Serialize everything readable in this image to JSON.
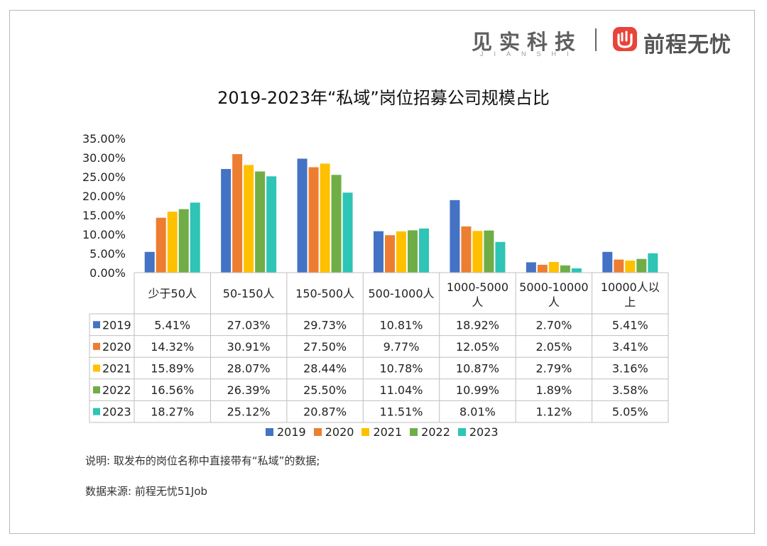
{
  "brand": {
    "left_logo_text": "见实科技",
    "left_logo_sub": "JIANSHI",
    "right_logo_text": "前程无忧"
  },
  "notes": {
    "line1": "说明: 取发布的岗位名称中直接带有“私域”的数据;",
    "line2": "数据来源: 前程无忧51Job"
  },
  "chart_data": {
    "type": "bar",
    "title": "2019-2023年“私域”岗位招募公司规模占比",
    "xlabel": "",
    "ylabel": "",
    "ylim": [
      0,
      35
    ],
    "yticks": [
      "0.00%",
      "5.00%",
      "10.00%",
      "15.00%",
      "20.00%",
      "25.00%",
      "30.00%",
      "35.00%"
    ],
    "grid": false,
    "legend_position": "bottom",
    "categories": [
      "少于50人",
      "50-150人",
      "150-500人",
      "500-1000人",
      "1000-5000人",
      "5000-10000人",
      "10000人以上"
    ],
    "category_label_lines": [
      [
        "少于50人"
      ],
      [
        "50-150人"
      ],
      [
        "150-500人"
      ],
      [
        "500-1000人"
      ],
      [
        "1000-5000",
        "人"
      ],
      [
        "5000-10000",
        "人"
      ],
      [
        "10000人以",
        "上"
      ]
    ],
    "series": [
      {
        "name": "2019",
        "color": "#4472C4",
        "values": [
          5.41,
          27.03,
          29.73,
          10.81,
          18.92,
          2.7,
          5.41
        ],
        "labels": [
          "5.41%",
          "27.03%",
          "29.73%",
          "10.81%",
          "18.92%",
          "2.70%",
          "5.41%"
        ]
      },
      {
        "name": "2020",
        "color": "#ED7D31",
        "values": [
          14.32,
          30.91,
          27.5,
          9.77,
          12.05,
          2.05,
          3.41
        ],
        "labels": [
          "14.32%",
          "30.91%",
          "27.50%",
          "9.77%",
          "12.05%",
          "2.05%",
          "3.41%"
        ]
      },
      {
        "name": "2021",
        "color": "#FFC000",
        "values": [
          15.89,
          28.07,
          28.44,
          10.78,
          10.87,
          2.79,
          3.16
        ],
        "labels": [
          "15.89%",
          "28.07%",
          "28.44%",
          "10.78%",
          "10.87%",
          "2.79%",
          "3.16%"
        ]
      },
      {
        "name": "2022",
        "color": "#70AD47",
        "values": [
          16.56,
          26.39,
          25.5,
          11.04,
          10.99,
          1.89,
          3.58
        ],
        "labels": [
          "16.56%",
          "26.39%",
          "25.50%",
          "11.04%",
          "10.99%",
          "1.89%",
          "3.58%"
        ]
      },
      {
        "name": "2023",
        "color": "#2EC4B6",
        "values": [
          18.27,
          25.12,
          20.87,
          11.51,
          8.01,
          1.12,
          5.05
        ],
        "labels": [
          "18.27%",
          "25.12%",
          "20.87%",
          "11.51%",
          "8.01%",
          "1.12%",
          "5.05%"
        ]
      }
    ]
  }
}
